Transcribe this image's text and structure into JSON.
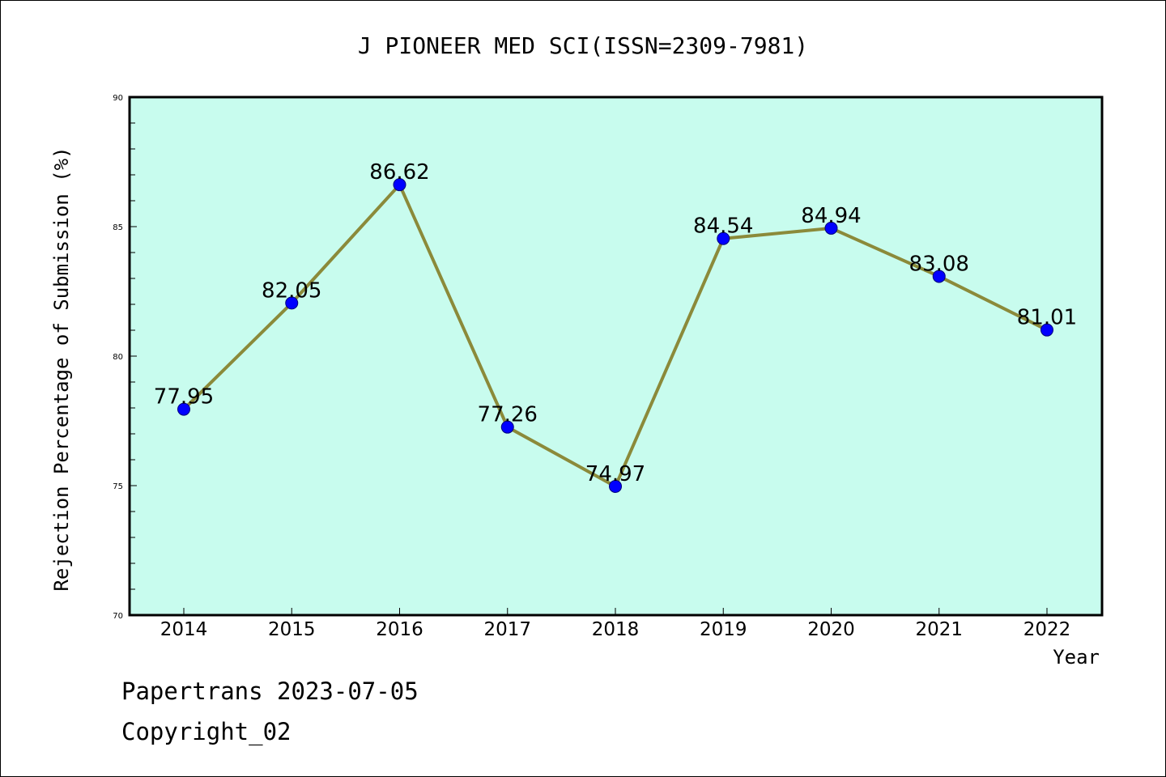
{
  "colors": {
    "plot_background": "#c8fcee",
    "line": "#8b8a3a",
    "marker": "#0000ff",
    "marker_edge": "#00007a",
    "axis": "#000000"
  },
  "footer": {
    "credit": "Papertrans 2023-07-05",
    "copyright": "Copyright_02"
  },
  "chart_data": {
    "type": "line",
    "title": "J PIONEER MED SCI(ISSN=2309-7981)",
    "xlabel": "Year",
    "ylabel": "Rejection Percentage of Submission (%)",
    "categories": [
      "2014",
      "2015",
      "2016",
      "2017",
      "2018",
      "2019",
      "2020",
      "2021",
      "2022"
    ],
    "series": [
      {
        "values": [
          77.95,
          82.05,
          86.62,
          77.26,
          74.97,
          84.54,
          84.94,
          83.08,
          81.01
        ],
        "labels": [
          "77.95",
          "82.05",
          "86.62",
          "77.26",
          "74.97",
          "84.54",
          "84.94",
          "83.08",
          "81.01"
        ]
      }
    ],
    "ylim": [
      70,
      90
    ],
    "yticks": [
      70,
      75,
      80,
      85,
      90
    ],
    "ytick_labels": [
      "70",
      "75",
      "80",
      "85",
      "90"
    ],
    "y_minor_step": 1,
    "grid": false,
    "legend": "none"
  }
}
